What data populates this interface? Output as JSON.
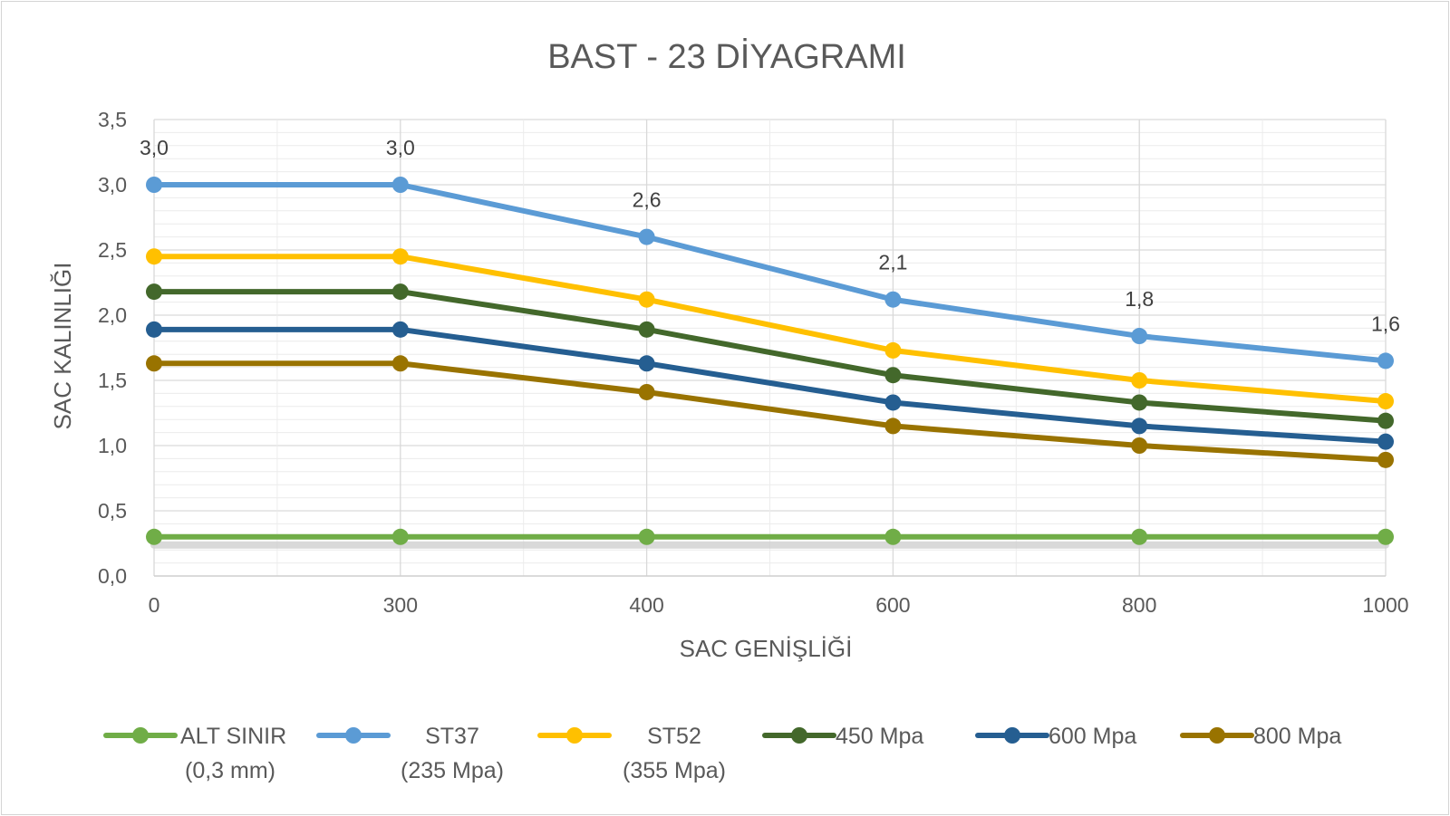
{
  "chart_data": {
    "type": "line",
    "title": "BAST - 23 DİYAGRAMI",
    "xlabel": "SAC GENİŞLİĞİ",
    "ylabel": "SAC KALINLIĞI",
    "categories": [
      "0",
      "300",
      "400",
      "600",
      "800",
      "1000"
    ],
    "ylim": [
      0,
      3.5
    ],
    "yticks": [
      "0,0",
      "0,5",
      "1,0",
      "1,5",
      "2,0",
      "2,5",
      "3,0",
      "3,5"
    ],
    "grid": true,
    "legend_position": "bottom",
    "series": [
      {
        "key": "alt",
        "name_line1": "ALT SINIR",
        "name_line2": "(0,3 mm)",
        "color": "#70AD47",
        "values": [
          0.3,
          0.3,
          0.3,
          0.3,
          0.3,
          0.3
        ]
      },
      {
        "key": "st37",
        "name_line1": "ST37",
        "name_line2": "(235 Mpa)",
        "color": "#5B9BD5",
        "values": [
          3.0,
          3.0,
          2.6,
          2.12,
          1.84,
          1.65
        ],
        "data_labels": [
          "3,0",
          "3,0",
          "2,6",
          "2,1",
          "1,8",
          "1,6"
        ]
      },
      {
        "key": "st52",
        "name_line1": "ST52",
        "name_line2": "(355 Mpa)",
        "color": "#FFC000",
        "values": [
          2.45,
          2.45,
          2.12,
          1.73,
          1.5,
          1.34
        ]
      },
      {
        "key": "m450",
        "name_line1": "450  Mpa",
        "name_line2": "",
        "color": "#43682B",
        "values": [
          2.18,
          2.18,
          1.89,
          1.54,
          1.33,
          1.19
        ]
      },
      {
        "key": "m600",
        "name_line1": "600 Mpa",
        "name_line2": "",
        "color": "#255E91",
        "values": [
          1.89,
          1.89,
          1.63,
          1.33,
          1.15,
          1.03
        ]
      },
      {
        "key": "m800",
        "name_line1": "800 Mpa",
        "name_line2": "",
        "color": "#997300",
        "values": [
          1.63,
          1.63,
          1.41,
          1.15,
          1.0,
          0.89
        ]
      }
    ]
  }
}
